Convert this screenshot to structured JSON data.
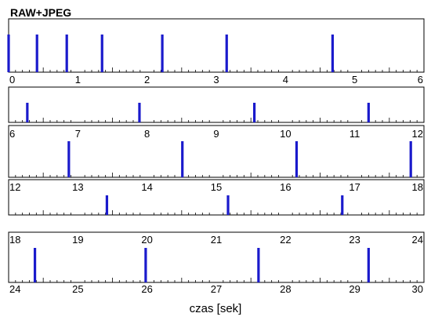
{
  "chart_data": {
    "type": "event-raster",
    "title": "RAW+JPEG",
    "xlabel": "czas [sek]",
    "ylabel": "",
    "unit": "s",
    "rows": [
      {
        "xlim": [
          0,
          6
        ],
        "tick_labels": [
          "0",
          "1",
          "2",
          "3",
          "4",
          "5",
          "6"
        ],
        "events": [
          0.0,
          0.41,
          0.84,
          1.35,
          2.22,
          3.15,
          4.68
        ]
      },
      {
        "xlim": [
          6,
          12
        ],
        "tick_labels": [
          "6",
          "7",
          "8",
          "9",
          "10",
          "11",
          "12"
        ],
        "events": [
          6.27,
          7.89,
          9.55,
          11.2
        ]
      },
      {
        "xlim": [
          12,
          18
        ],
        "tick_labels": [
          "12",
          "13",
          "14",
          "15",
          "16",
          "17",
          "18"
        ],
        "events": [
          12.87,
          14.51,
          16.16,
          17.81
        ]
      },
      {
        "xlim": [
          18,
          24
        ],
        "tick_labels": [
          "18",
          "19",
          "20",
          "21",
          "22",
          "23",
          "24"
        ],
        "events": [
          19.42,
          21.17,
          22.82
        ]
      },
      {
        "xlim": [
          24,
          30
        ],
        "tick_labels": [
          "24",
          "25",
          "26",
          "27",
          "28",
          "29",
          "30"
        ],
        "events": [
          24.38,
          25.98,
          27.61,
          29.2
        ]
      }
    ],
    "minor_ticks_per_unit": 10,
    "grid": false,
    "colors": {
      "event": "#1a1acc",
      "axis": "#000000",
      "tick": "#000000"
    }
  }
}
